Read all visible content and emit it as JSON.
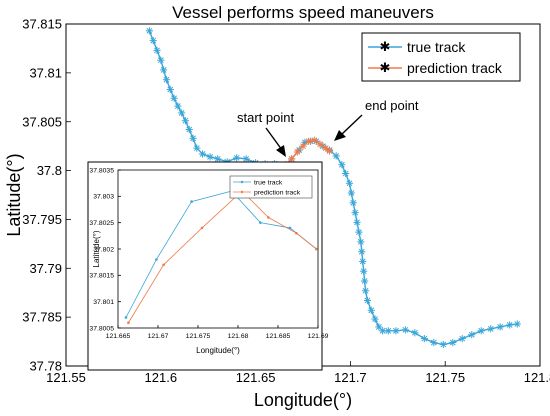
{
  "chart_data": [
    {
      "type": "line",
      "title": "Vessel performs speed maneuvers",
      "xlabel": "Longitude(°)",
      "ylabel": "Latitude(°)",
      "xlim": [
        121.55,
        121.8
      ],
      "ylim": [
        37.78,
        37.815
      ],
      "xticks": [
        "121.55",
        "121.6",
        "121.65",
        "121.7",
        "121.75",
        "121.8"
      ],
      "yticks": [
        "37.78",
        "37.785",
        "37.79",
        "37.795",
        "37.8",
        "37.805",
        "37.81",
        "37.815"
      ],
      "grid": false,
      "legend_position": "top-right",
      "annotations": [
        {
          "text": "start point",
          "x": 121.665,
          "y": 37.8005
        },
        {
          "text": "end point",
          "x": 121.6935,
          "y": 37.802
        }
      ],
      "series": [
        {
          "name": "true track",
          "color": "#3aa6d8",
          "marker": "asterisk",
          "x": [
            121.594,
            121.596,
            121.598,
            121.6,
            121.6015,
            121.603,
            121.605,
            121.607,
            121.609,
            121.611,
            121.613,
            121.615,
            121.617,
            121.619,
            121.622,
            121.626,
            121.63,
            121.635,
            121.64,
            121.645,
            121.65,
            121.655,
            121.66,
            121.665,
            121.669,
            121.673,
            121.676,
            121.679,
            121.682,
            121.6855,
            121.689,
            121.6925,
            121.6955,
            121.6975,
            121.6995,
            121.7005,
            121.7015,
            121.7025,
            121.7035,
            121.7045,
            121.7055,
            121.706,
            121.7065,
            121.707,
            121.7075,
            121.708,
            121.709,
            121.711,
            121.713,
            121.715,
            121.717,
            121.72,
            121.724,
            121.729,
            121.734,
            121.739,
            121.744,
            121.749,
            121.754,
            121.759,
            121.764,
            121.769,
            121.774,
            121.779,
            121.784,
            121.788
          ],
          "y": [
            37.8143,
            37.8133,
            37.8123,
            37.8113,
            37.8103,
            37.8093,
            37.8083,
            37.8074,
            37.8066,
            37.8059,
            37.8051,
            37.8042,
            37.8033,
            37.8023,
            37.8017,
            37.8014,
            37.8012,
            37.8009,
            37.8013,
            37.8012,
            37.8008,
            37.8007,
            37.8007,
            37.8005,
            37.8012,
            37.8021,
            37.8029,
            37.803,
            37.803,
            37.8025,
            37.8021,
            37.8015,
            37.8006,
            37.7997,
            37.7987,
            37.7977,
            37.7967,
            37.7957,
            37.7947,
            37.7937,
            37.7927,
            37.7917,
            37.7907,
            37.7897,
            37.7887,
            37.7877,
            37.7867,
            37.7857,
            37.7848,
            37.784,
            37.7836,
            37.7836,
            37.7836,
            37.7837,
            37.7834,
            37.7828,
            37.7824,
            37.7822,
            37.7824,
            37.7828,
            37.7832,
            37.7836,
            37.7838,
            37.784,
            37.7842,
            37.7843
          ]
        },
        {
          "name": "prediction track",
          "color": "#f07a4a",
          "marker": "asterisk",
          "x": [
            121.666,
            121.669,
            121.672,
            121.675,
            121.678,
            121.681,
            121.684,
            121.687,
            121.689
          ],
          "y": [
            37.8006,
            37.8012,
            37.8019,
            37.8025,
            37.803,
            37.8031,
            37.8027,
            37.8023,
            37.802
          ]
        }
      ]
    },
    {
      "type": "line",
      "xlabel": "Longitude(°)",
      "ylabel": "Latitude(°)",
      "xlim": [
        121.665,
        121.69
      ],
      "ylim": [
        37.8005,
        37.8035
      ],
      "xticks": [
        "121.665",
        "121.67",
        "121.675",
        "121.68",
        "121.685",
        "121.69"
      ],
      "yticks": [
        "37.8005",
        "37.801",
        "37.8015",
        "37.802",
        "37.8025",
        "37.803",
        "37.8035"
      ],
      "grid": false,
      "legend_position": "top-right",
      "series": [
        {
          "name": "true track",
          "color": "#3aa6d8",
          "marker": "point",
          "x": [
            121.666,
            121.6698,
            121.6742,
            121.6792,
            121.6828,
            121.6865,
            121.6898
          ],
          "y": [
            37.8007,
            37.8018,
            37.8029,
            37.8031,
            37.8025,
            37.8024,
            37.802
          ]
        },
        {
          "name": "prediction track",
          "color": "#f07a4a",
          "marker": "point",
          "x": [
            121.6663,
            121.6707,
            121.6755,
            121.6805,
            121.6838,
            121.6873,
            121.6898
          ],
          "y": [
            37.8006,
            37.8017,
            37.8024,
            37.8031,
            37.8026,
            37.8023,
            37.802
          ]
        }
      ]
    }
  ]
}
